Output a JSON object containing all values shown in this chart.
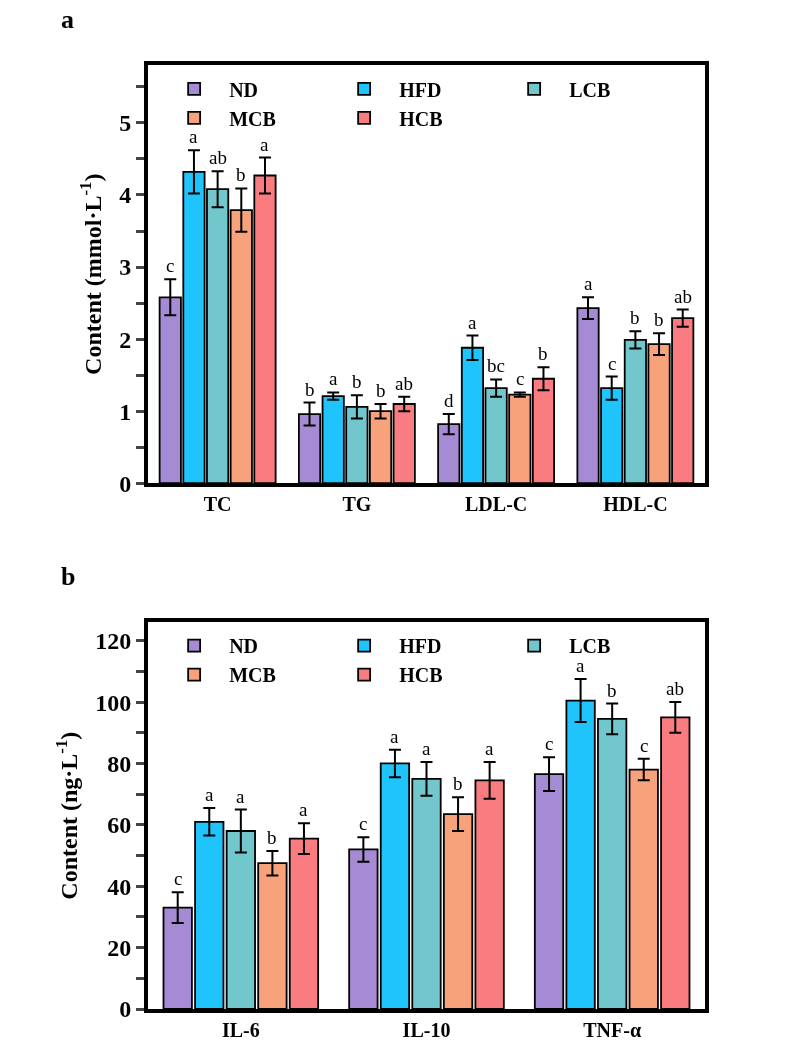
{
  "chart_data": [
    {
      "type": "bar",
      "title": "a",
      "ylabel": "Content (mmol·L$^{-1}$)",
      "categories": [
        "TC",
        "TG",
        "LDL-C",
        "HDL-C"
      ],
      "ylim": [
        0,
        5.8
      ],
      "yticks": [
        0,
        {
          "value": 0.5,
          "label": null
        },
        1,
        {
          "value": 1.5,
          "label": null
        },
        2,
        {
          "value": 2.5,
          "label": null
        },
        3,
        {
          "value": 3.5,
          "label": null
        },
        4,
        {
          "value": 4.5,
          "label": null
        },
        5,
        {
          "value": 5.5,
          "label": null
        }
      ],
      "legend": "top left",
      "series": [
        {
          "name": "ND",
          "color": "#a58bd3",
          "values": [
            2.58,
            0.96,
            0.82,
            2.43
          ],
          "errors": [
            0.25,
            0.16,
            0.14,
            0.15
          ],
          "value_labels": [
            "c",
            "b",
            "d",
            "a"
          ]
        },
        {
          "name": "HFD",
          "color": "#1ec4fb",
          "values": [
            4.32,
            1.21,
            1.88,
            1.32
          ],
          "errors": [
            0.3,
            0.05,
            0.17,
            0.16
          ],
          "value_labels": [
            "a",
            "a",
            "a",
            "c"
          ]
        },
        {
          "name": "LCB",
          "color": "#72c7cd",
          "values": [
            4.08,
            1.06,
            1.32,
            1.99
          ],
          "errors": [
            0.25,
            0.16,
            0.12,
            0.12
          ],
          "value_labels": [
            "ab",
            "b",
            "bc",
            "b"
          ]
        },
        {
          "name": "MCB",
          "color": "#f8a27c",
          "values": [
            3.79,
            1.0,
            1.23,
            1.93
          ],
          "errors": [
            0.3,
            0.1,
            0.03,
            0.15
          ],
          "value_labels": [
            "b",
            "b",
            "c",
            "b"
          ]
        },
        {
          "name": "HCB",
          "color": "#f97c80",
          "values": [
            4.27,
            1.1,
            1.45,
            2.29
          ],
          "errors": [
            0.25,
            0.1,
            0.16,
            0.12
          ],
          "value_labels": [
            "a",
            "ab",
            "b",
            "ab"
          ]
        }
      ]
    },
    {
      "type": "bar",
      "title": "b",
      "ylabel": "Content (ng·L$^{-1}$)",
      "categories": [
        "IL-6",
        "IL-10",
        "TNF-α"
      ],
      "ylim": [
        0,
        126
      ],
      "yticks": [
        0,
        {
          "value": 10,
          "label": null
        },
        20,
        {
          "value": 30,
          "label": null
        },
        40,
        {
          "value": 50,
          "label": null
        },
        60,
        {
          "value": 70,
          "label": null
        },
        80,
        {
          "value": 90,
          "label": null
        },
        100,
        {
          "value": 110,
          "label": null
        },
        120
      ],
      "legend": "top left",
      "series": [
        {
          "name": "ND",
          "color": "#a58bd3",
          "values": [
            33,
            52,
            76.5
          ],
          "errors": [
            5,
            4,
            5.5
          ],
          "value_labels": [
            "c",
            "c",
            "c"
          ]
        },
        {
          "name": "HFD",
          "color": "#1ec4fb",
          "values": [
            61,
            80,
            100.5
          ],
          "errors": [
            4.5,
            4.5,
            7
          ],
          "value_labels": [
            "a",
            "a",
            "a"
          ]
        },
        {
          "name": "LCB",
          "color": "#72c7cd",
          "values": [
            58,
            75,
            94.5
          ],
          "errors": [
            7,
            5.5,
            5
          ],
          "value_labels": [
            "a",
            "a",
            "b"
          ]
        },
        {
          "name": "MCB",
          "color": "#f8a27c",
          "values": [
            47.5,
            63.5,
            78
          ],
          "errors": [
            4,
            5.5,
            3.5
          ],
          "value_labels": [
            "b",
            "b",
            "c"
          ]
        },
        {
          "name": "HCB",
          "color": "#f97c80",
          "values": [
            55.5,
            74.5,
            95
          ],
          "errors": [
            5,
            6,
            5
          ],
          "value_labels": [
            "a",
            "a",
            "ab"
          ]
        }
      ]
    }
  ]
}
